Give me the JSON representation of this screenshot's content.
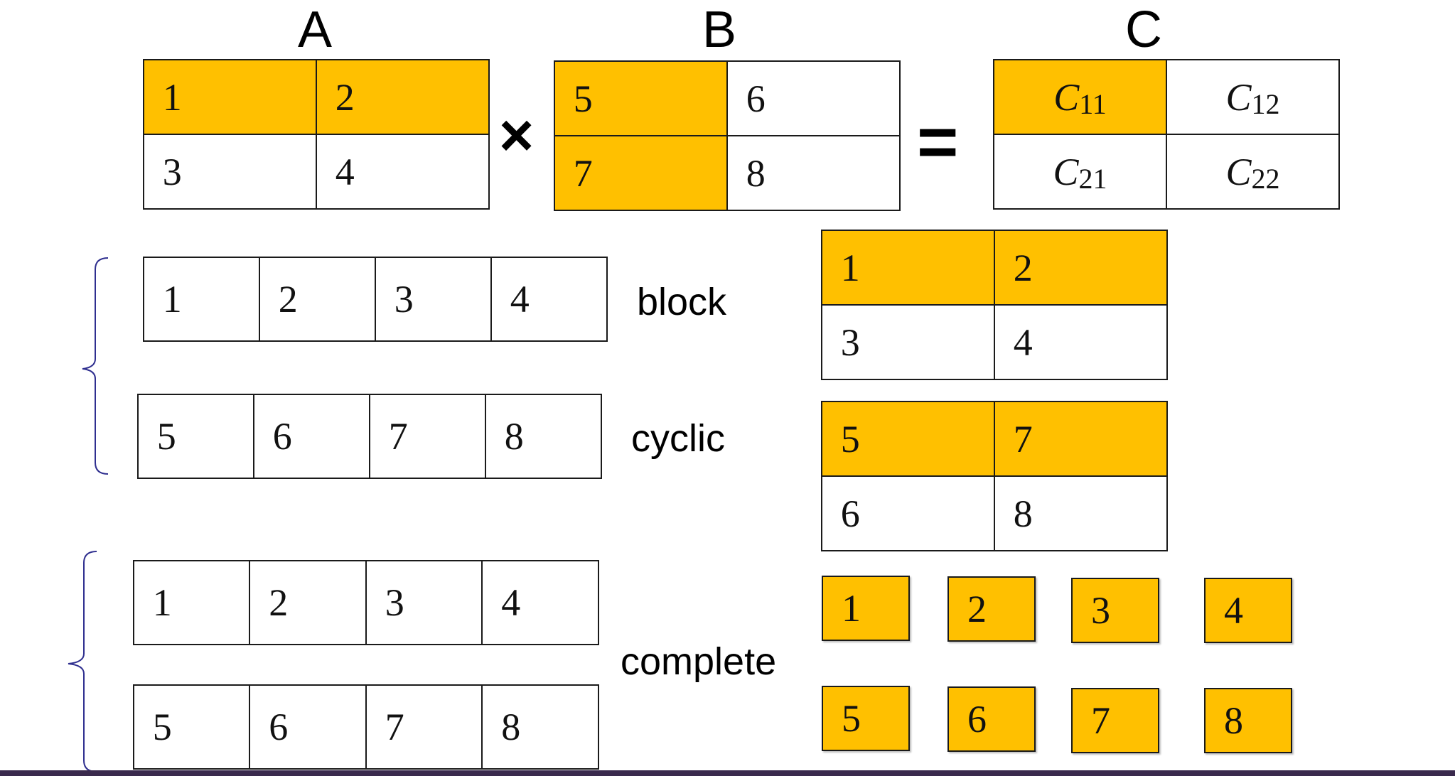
{
  "matrix_a": {
    "label": "A",
    "cells": [
      "1",
      "2",
      "3",
      "4"
    ]
  },
  "matrix_b": {
    "label": "B",
    "cells": [
      "5",
      "6",
      "7",
      "8"
    ]
  },
  "matrix_c": {
    "label": "C",
    "cells": [
      {
        "base": "C",
        "sub": "11"
      },
      {
        "base": "C",
        "sub": "12"
      },
      {
        "base": "C",
        "sub": "21"
      },
      {
        "base": "C",
        "sub": "22"
      }
    ]
  },
  "operators": {
    "times": "×",
    "equals": "="
  },
  "strategies": {
    "block": {
      "label": "block",
      "row": [
        "1",
        "2",
        "3",
        "4"
      ],
      "grid": [
        "1",
        "2",
        "3",
        "4"
      ]
    },
    "cyclic": {
      "label": "cyclic",
      "row": [
        "5",
        "6",
        "7",
        "8"
      ],
      "grid": [
        "5",
        "7",
        "6",
        "8"
      ]
    },
    "complete": {
      "label": "complete",
      "row1": [
        "1",
        "2",
        "3",
        "4"
      ],
      "row2": [
        "5",
        "6",
        "7",
        "8"
      ],
      "squares": [
        "1",
        "2",
        "3",
        "4",
        "5",
        "6",
        "7",
        "8"
      ]
    }
  },
  "colors": {
    "highlight": "#ffc000",
    "brace": "#2f2f8f",
    "footer": "#3a2a4d"
  }
}
